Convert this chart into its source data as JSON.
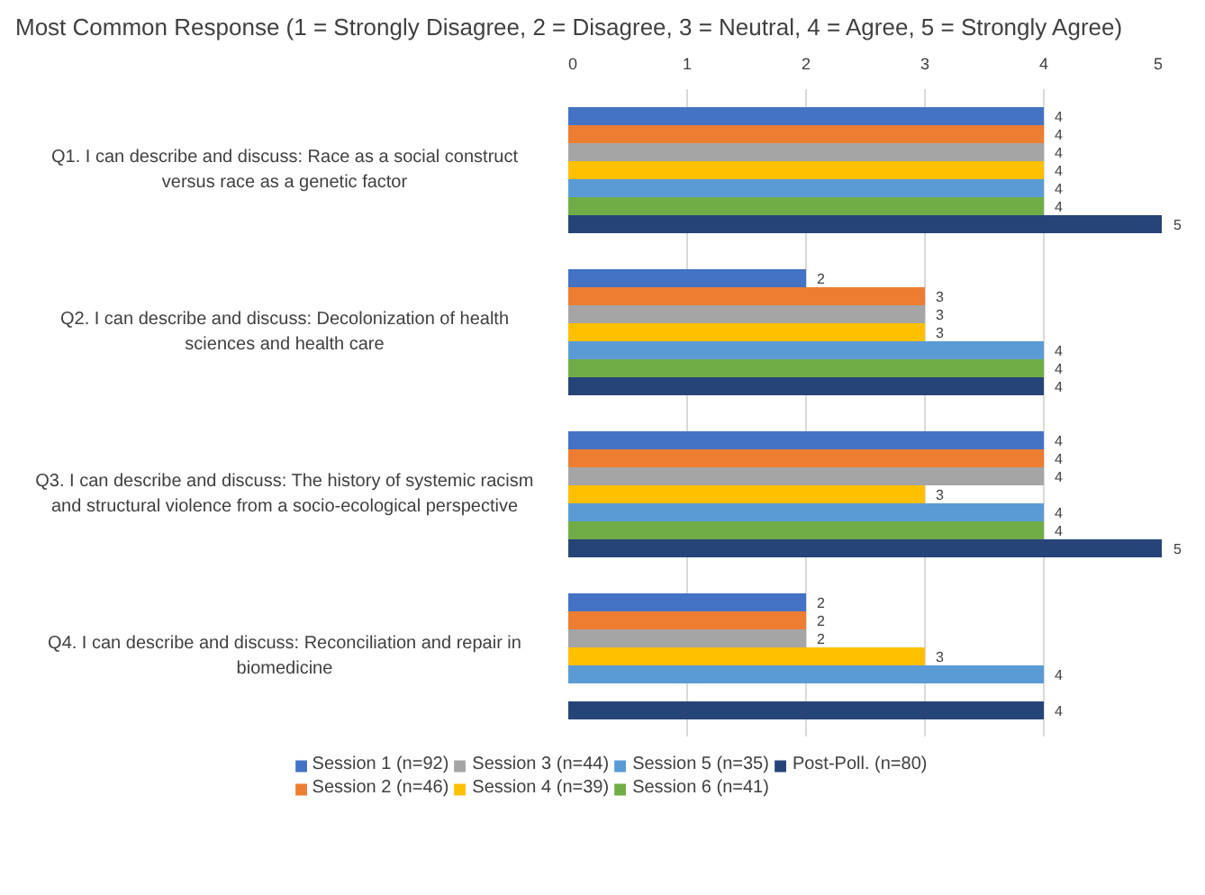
{
  "chart_data": {
    "type": "bar",
    "orientation": "horizontal",
    "title": "Most Common Response (1 = Strongly Disagree, 2 = Disagree, 3 = Neutral, 4 = Agree, 5 = Strongly Agree)",
    "categories": [
      "Q1. I can describe and discuss: Race as a social construct versus race as a genetic factor",
      "Q2. I can describe and discuss: Decolonization of health sciences and health care",
      "Q3. I can describe and discuss: The history of systemic racism and structural violence from a socio-ecological perspective",
      "Q4. I can describe and discuss: Reconciliation and repair in biomedicine"
    ],
    "series": [
      {
        "name": "Session 1 (n=92)",
        "color": "#4472c4",
        "values": [
          4,
          2,
          4,
          2
        ]
      },
      {
        "name": "Session 2 (n=46)",
        "color": "#ed7d31",
        "values": [
          4,
          3,
          4,
          2
        ]
      },
      {
        "name": "Session 3 (n=44)",
        "color": "#a5a5a5",
        "values": [
          4,
          3,
          4,
          2
        ]
      },
      {
        "name": "Session 4 (n=39)",
        "color": "#ffc000",
        "values": [
          4,
          3,
          3,
          3
        ]
      },
      {
        "name": "Session 5 (n=35)",
        "color": "#5b9bd5",
        "values": [
          4,
          4,
          4,
          4
        ]
      },
      {
        "name": "Session 6 (n=41)",
        "color": "#70ad47",
        "values": [
          4,
          4,
          4,
          null
        ]
      },
      {
        "name": "Post-Poll. (n=80)",
        "color": "#264478",
        "values": [
          5,
          4,
          5,
          4
        ]
      }
    ],
    "xlim": [
      0,
      5
    ],
    "xticks": [
      0,
      1,
      2,
      3,
      4,
      5
    ],
    "grid": "x",
    "legend": "bottom",
    "data_labels": true
  }
}
